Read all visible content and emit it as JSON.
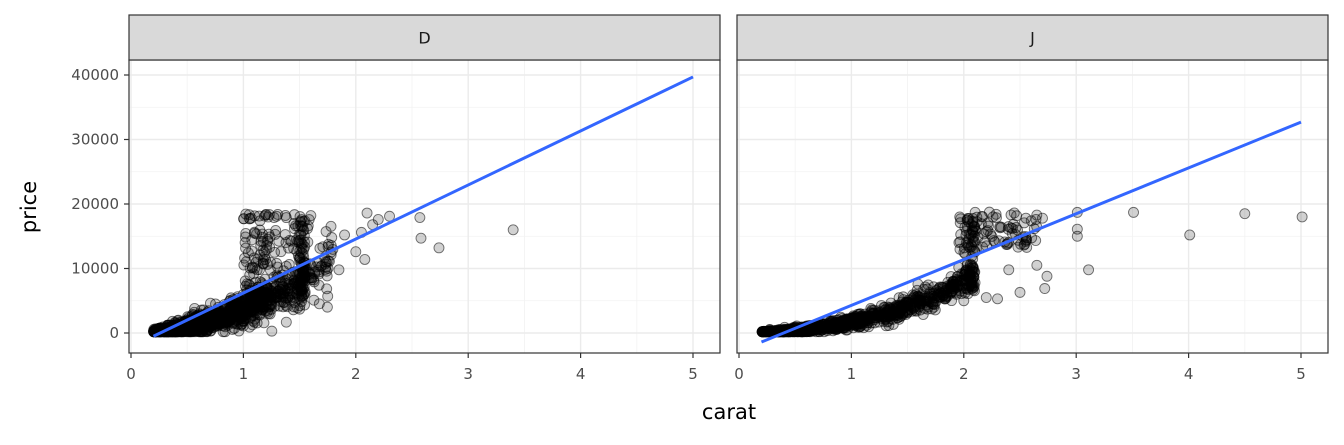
{
  "chart_data": {
    "type": "scatter",
    "facet_variable": "color",
    "xlabel": "carat",
    "ylabel": "price",
    "xlim": [
      0,
      5.2
    ],
    "ylim": [
      -1500,
      42000
    ],
    "x_ticks": [
      0,
      1,
      2,
      3,
      4,
      5
    ],
    "y_ticks": [
      0,
      10000,
      20000,
      30000,
      40000
    ],
    "grid": true,
    "point_color": "#000000",
    "line_color": "#3366FF",
    "panels": [
      {
        "label": "D",
        "fit_line": [
          [
            0.2,
            -500
          ],
          [
            5.0,
            39700
          ]
        ],
        "outlier_points": [
          [
            2.57,
            17900
          ],
          [
            2.58,
            14700
          ],
          [
            2.74,
            13200
          ],
          [
            3.4,
            16000
          ],
          [
            2.1,
            18600
          ],
          [
            2.2,
            17600
          ],
          [
            2.05,
            15600
          ],
          [
            2.15,
            16800
          ],
          [
            1.9,
            15200
          ],
          [
            1.85,
            9800
          ],
          [
            1.75,
            5700
          ],
          [
            1.5,
            3700
          ],
          [
            1.6,
            18200
          ],
          [
            2.3,
            18100
          ],
          [
            2.0,
            12600
          ],
          [
            2.08,
            11400
          ]
        ]
      },
      {
        "label": "J",
        "fit_line": [
          [
            0.2,
            -1400
          ],
          [
            5.0,
            32700
          ]
        ],
        "outlier_points": [
          [
            3.01,
            18700
          ],
          [
            3.01,
            16100
          ],
          [
            3.01,
            15000
          ],
          [
            3.11,
            9800
          ],
          [
            3.51,
            18700
          ],
          [
            4.01,
            15200
          ],
          [
            4.5,
            18500
          ],
          [
            5.01,
            18000
          ],
          [
            2.74,
            8800
          ],
          [
            2.72,
            6900
          ],
          [
            2.5,
            6300
          ],
          [
            2.65,
            10500
          ],
          [
            2.4,
            9800
          ],
          [
            2.2,
            5500
          ],
          [
            2.0,
            5000
          ],
          [
            2.1,
            7800
          ],
          [
            2.3,
            5300
          ],
          [
            2.6,
            17400
          ],
          [
            2.7,
            17800
          ]
        ]
      }
    ]
  }
}
